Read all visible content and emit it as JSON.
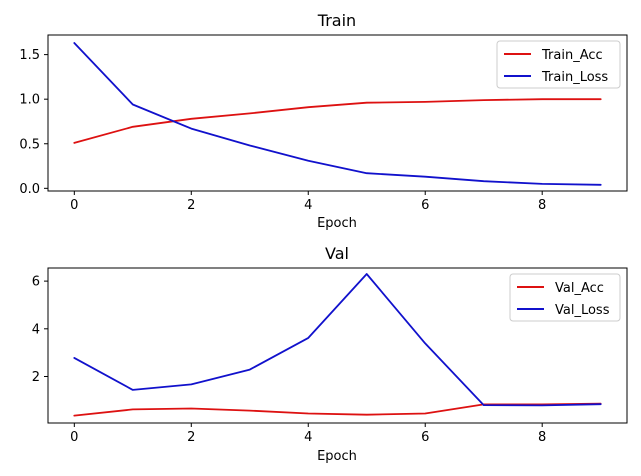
{
  "chart_data": [
    {
      "type": "line",
      "title": "Train",
      "xlabel": "Epoch",
      "ylabel": "",
      "x": [
        0,
        1,
        2,
        3,
        4,
        5,
        6,
        7,
        8,
        9
      ],
      "xlim": [
        -0.45,
        9.45
      ],
      "ylim": [
        -0.03,
        1.72
      ],
      "xticks": [
        0,
        2,
        4,
        6,
        8
      ],
      "yticks": [
        0.0,
        0.5,
        1.0,
        1.5
      ],
      "ytick_labels": [
        "0.0",
        "0.5",
        "1.0",
        "1.5"
      ],
      "legend_position": "top-right",
      "grid": false,
      "series": [
        {
          "name": "Train_Acc",
          "color": "#dd1111",
          "values": [
            0.51,
            0.69,
            0.78,
            0.84,
            0.91,
            0.96,
            0.97,
            0.99,
            1.0,
            1.0
          ]
        },
        {
          "name": "Train_Loss",
          "color": "#1111cc",
          "values": [
            1.63,
            0.94,
            0.67,
            0.48,
            0.31,
            0.17,
            0.13,
            0.08,
            0.05,
            0.04
          ]
        }
      ]
    },
    {
      "type": "line",
      "title": "Val",
      "xlabel": "Epoch",
      "ylabel": "",
      "x": [
        0,
        1,
        2,
        3,
        4,
        5,
        6,
        7,
        8,
        9
      ],
      "xlim": [
        -0.45,
        9.45
      ],
      "ylim": [
        0.05,
        6.55
      ],
      "xticks": [
        0,
        2,
        4,
        6,
        8
      ],
      "yticks": [
        2,
        4,
        6
      ],
      "ytick_labels": [
        "2",
        "4",
        "6"
      ],
      "legend_position": "top-right",
      "grid": false,
      "series": [
        {
          "name": "Val_Acc",
          "color": "#dd1111",
          "values": [
            0.36,
            0.62,
            0.66,
            0.57,
            0.45,
            0.4,
            0.45,
            0.83,
            0.83,
            0.86
          ]
        },
        {
          "name": "Val_Loss",
          "color": "#1111cc",
          "values": [
            2.78,
            1.44,
            1.67,
            2.29,
            3.62,
            6.3,
            3.39,
            0.8,
            0.79,
            0.84
          ]
        }
      ]
    }
  ]
}
